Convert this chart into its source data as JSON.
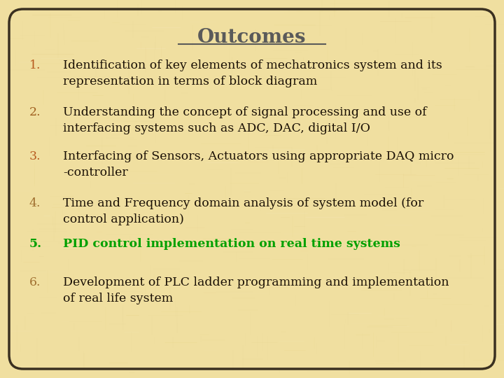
{
  "title": "Outcomes",
  "title_color": "#5a5a5a",
  "title_fontsize": 20,
  "background_color": "#f0dfa0",
  "border_color": "#3a3020",
  "number_color_13": "#b85c20",
  "number_color_2": "#a06020",
  "number_color_46": "#8b7030",
  "text_color": "#1a1005",
  "highlight_color": "#00a000",
  "items": [
    {
      "num": "1.",
      "text": "Identification of key elements of mechatronics system and its\nrepresentation in terms of block diagram",
      "highlight": false,
      "num_color": "#b85c20"
    },
    {
      "num": "2.",
      "text": "Understanding the concept of signal processing and use of\ninterfacing systems such as ADC, DAC, digital I/O",
      "highlight": false,
      "num_color": "#a06020"
    },
    {
      "num": "3.",
      "text": "Interfacing of Sensors, Actuators using appropriate DAQ micro\n-controller",
      "highlight": false,
      "num_color": "#b85c20"
    },
    {
      "num": "4.",
      "text": "Time and Frequency domain analysis of system model (for\ncontrol application)",
      "highlight": false,
      "num_color": "#a07030"
    },
    {
      "num": "5.",
      "text": "PID control implementation on real time systems",
      "highlight": true,
      "num_color": "#b85c20"
    },
    {
      "num": "6.",
      "text": "Development of PLC ladder programming and implementation\nof real life system",
      "highlight": false,
      "num_color": "#a07030"
    }
  ],
  "figwidth": 7.2,
  "figheight": 5.4,
  "dpi": 100
}
